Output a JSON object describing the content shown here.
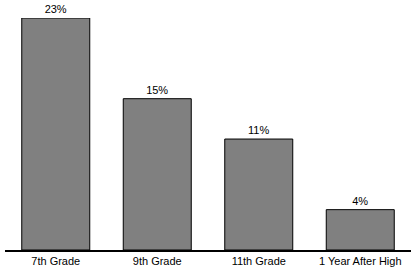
{
  "chart_data": {
    "type": "bar",
    "categories": [
      "7th Grade",
      "9th Grade",
      "11th Grade",
      "1 Year After High"
    ],
    "values": [
      23,
      15,
      11,
      4
    ],
    "value_labels": [
      "23%",
      "15%",
      "11%",
      "4%"
    ],
    "data_labels": true,
    "color": "#808080",
    "ylim": [
      0,
      23
    ],
    "grid": false,
    "tick_labels": "x"
  }
}
